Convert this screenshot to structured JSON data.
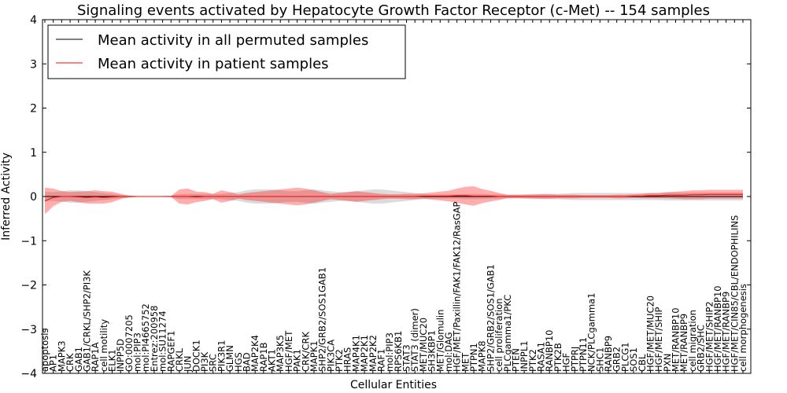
{
  "chart_data": {
    "type": "line",
    "title": "Signaling events activated by Hepatocyte Growth Factor Receptor (c-Met) -- 154 samples",
    "xlabel": "Cellular Entities",
    "ylabel": "Inferred Activity",
    "ylim": [
      -4,
      4
    ],
    "yticks": [
      -4,
      -3,
      -2,
      -1,
      0,
      1,
      2,
      3,
      4
    ],
    "ytick_labels": [
      "−4",
      "−3",
      "−2",
      "−1",
      "0",
      "1",
      "2",
      "3",
      "4"
    ],
    "legend_position": "top-left",
    "legend": [
      {
        "label": "Mean activity in all permuted samples",
        "color": "#000000"
      },
      {
        "label": "Mean activity in patient samples",
        "color": "#ff0000"
      }
    ],
    "categories": [
      "apoptosis",
      "AP1",
      "MAPK3",
      "CRK",
      "GAB1",
      "GAB1/CRKL/SHP2/PI3K",
      "RAP1A",
      "cell motility",
      "ELK1",
      "INPP5D",
      "GO:0007205",
      "mol:PIP3",
      "mol:PI4665752",
      "Entrez:200958",
      "mol:SU11274",
      "RAPGEF1",
      "CRKL",
      "JUN",
      "DOCK1",
      "PI3K",
      "SRC",
      "PIK3R1",
      "GLMN",
      "HGS",
      "BAD",
      "MAP2K4",
      "RAP1B",
      "AKT1",
      "MAP3K5",
      "HGF/MET",
      "PAK1",
      "CRK/CRK",
      "MAPK1",
      "SHP2/GRB2/SOS1GAB1",
      "PIK3CA",
      "PTK2",
      "HRAS",
      "MAP4K1",
      "MAP2K1",
      "MAP2K2",
      "RAF1",
      "mol:PIP3",
      "RPS6KB1",
      "STAT3",
      "STAT3 (dimer)",
      "MET/MUC20",
      "SH3KBP1",
      "MET/Glomulin",
      "mol:DAG",
      "HGF/MET/Paxillin/FAK1/FAK12/RasGAP",
      "MET",
      "PTPN1",
      "MAPK8",
      "SHP2/GRB2/SOS1/GAB1",
      "cell proliferation",
      "PLCgamma1/PKC",
      "PTEN",
      "INPPL1",
      "PTK2",
      "RASA1",
      "RANBP10",
      "PTK2B",
      "HGF",
      "PTPRJ",
      "PTPN11",
      "NCK/PLCgamma1",
      "SHC1",
      "RANBP9",
      "GRB2",
      "PLCG1",
      "SOS1",
      "CBL",
      "HGF/MET/MUC20",
      "HGF/MET/SHIP",
      "PXN",
      "MET/RANBP10",
      "MET/RANBP9",
      "cell migration",
      "GRB2/SHC",
      "HGF/MET/SHIP2",
      "HGF/MET/RANBP10",
      "HGF/MET/RANBP9",
      "HGF/MET/CIN85/CBL/ENDOPHILINS",
      "cell morphogenesis"
    ],
    "series": [
      {
        "name": "Mean activity in patient samples",
        "color": "#ff0000",
        "values": [
          -0.1,
          -0.02,
          0,
          0,
          -0.01,
          -0.02,
          -0.01,
          -0.02,
          -0.01,
          0,
          0,
          0,
          0,
          0,
          0,
          0,
          0,
          0,
          -0.01,
          0,
          0,
          0,
          0,
          0,
          0,
          0,
          0,
          0,
          0,
          0,
          0,
          0,
          0,
          0,
          0,
          0,
          0,
          0,
          0,
          0,
          0,
          0,
          0,
          0,
          0,
          0.01,
          0.01,
          0.01,
          0.01,
          0.02,
          0.02,
          0.01,
          0.01,
          0.01,
          0,
          0,
          0,
          0,
          0,
          0,
          0,
          0,
          0,
          0,
          0,
          0,
          0,
          0,
          0,
          0,
          0.01,
          0.01,
          0.02,
          0.02,
          0.03,
          0.03,
          0.03,
          0.04,
          0.04,
          0.05,
          0.05,
          0.05,
          0.05,
          0.05
        ]
      },
      {
        "name": "Mean activity in all permuted samples",
        "color": "#000000",
        "values": [
          0,
          0,
          0,
          0,
          0,
          0,
          0,
          0,
          0,
          0,
          0,
          0,
          0,
          0,
          0,
          0,
          0,
          0,
          0,
          0,
          0,
          0,
          0,
          0,
          0,
          0,
          0,
          0,
          0,
          0,
          0,
          0,
          0,
          0,
          0,
          0,
          0,
          0,
          0,
          0,
          0,
          0,
          0,
          0,
          0,
          0,
          0,
          0,
          0,
          0,
          0,
          0,
          0,
          0,
          0,
          0,
          0,
          0,
          0,
          0,
          0,
          0,
          0,
          0,
          0,
          0,
          0,
          0,
          0,
          0,
          0,
          0,
          0,
          0,
          0,
          0,
          0,
          0,
          0,
          0,
          0,
          0,
          0,
          0
        ]
      }
    ],
    "patient_band": [
      0.3,
      0.2,
      0.12,
      0.1,
      0.12,
      0.14,
      0.15,
      0.14,
      0.12,
      0.06,
      0.02,
      0.01,
      0.01,
      0.01,
      0.01,
      0.01,
      0.16,
      0.18,
      0.12,
      0.1,
      0.06,
      0.14,
      0.1,
      0.05,
      0.08,
      0.1,
      0.12,
      0.14,
      0.16,
      0.18,
      0.2,
      0.18,
      0.14,
      0.1,
      0.06,
      0.08,
      0.1,
      0.12,
      0.1,
      0.08,
      0.06,
      0.05,
      0.05,
      0.06,
      0.06,
      0.06,
      0.08,
      0.1,
      0.12,
      0.16,
      0.2,
      0.22,
      0.16,
      0.12,
      0.08,
      0.04,
      0.04,
      0.04,
      0.04,
      0.05,
      0.05,
      0.04,
      0.04,
      0.04,
      0.03,
      0.03,
      0.03,
      0.03,
      0.04,
      0.04,
      0.04,
      0.05,
      0.06,
      0.06,
      0.07,
      0.08,
      0.09,
      0.1,
      0.1,
      0.1,
      0.1,
      0.1,
      0.1,
      0.1
    ],
    "permuted_band": [
      0.1,
      0.1,
      0.12,
      0.14,
      0.14,
      0.12,
      0.1,
      0.08,
      0.06,
      0.04,
      0.02,
      0.01,
      0.01,
      0.01,
      0.01,
      0.02,
      0.06,
      0.06,
      0.06,
      0.06,
      0.06,
      0.06,
      0.08,
      0.1,
      0.14,
      0.16,
      0.16,
      0.16,
      0.14,
      0.12,
      0.12,
      0.14,
      0.16,
      0.14,
      0.12,
      0.1,
      0.1,
      0.12,
      0.14,
      0.16,
      0.16,
      0.14,
      0.12,
      0.1,
      0.08,
      0.06,
      0.05,
      0.05,
      0.05,
      0.05,
      0.06,
      0.06,
      0.06,
      0.05,
      0.05,
      0.04,
      0.04,
      0.05,
      0.06,
      0.06,
      0.06,
      0.06,
      0.07,
      0.08,
      0.08,
      0.08,
      0.08,
      0.08,
      0.08,
      0.08,
      0.08,
      0.08,
      0.08,
      0.08,
      0.09,
      0.09,
      0.09,
      0.09,
      0.09,
      0.09,
      0.09,
      0.09,
      0.09,
      0.09
    ]
  }
}
